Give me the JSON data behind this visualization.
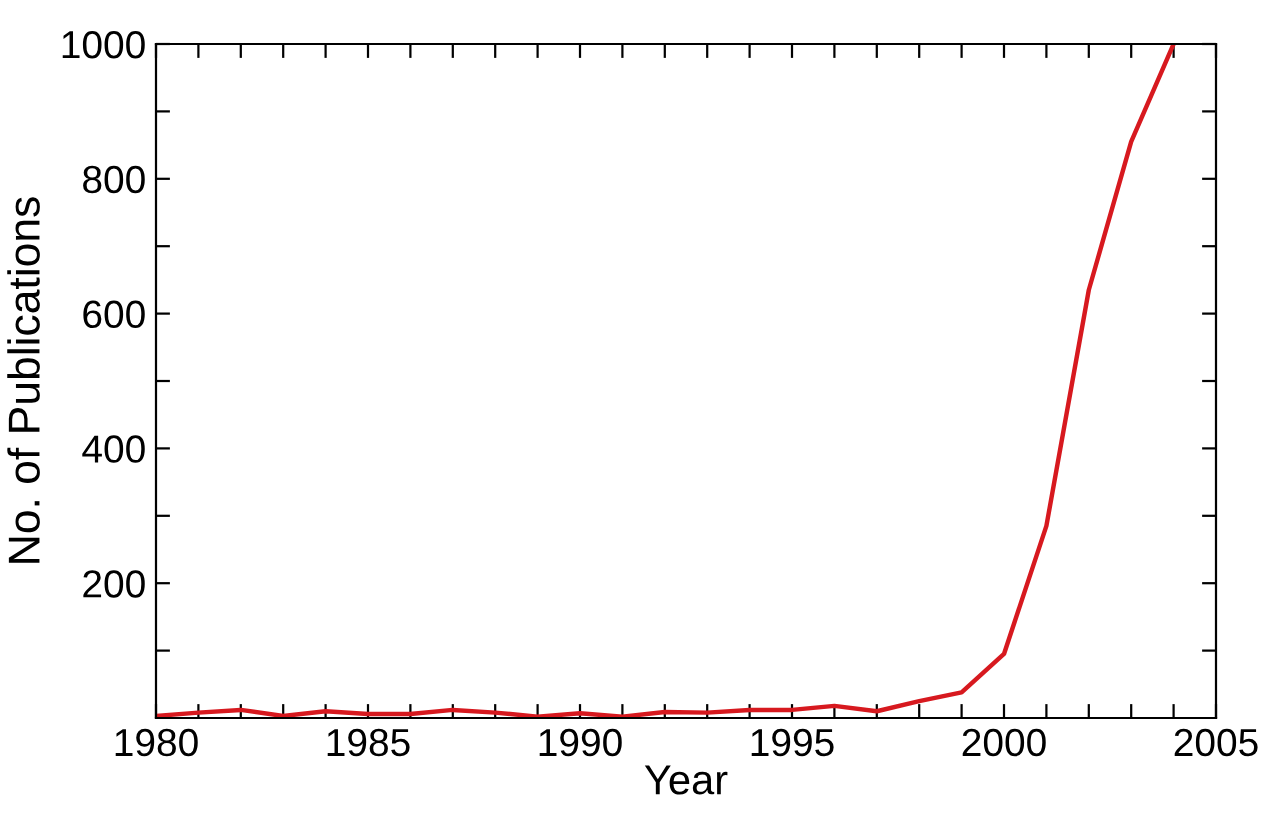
{
  "chart_data": {
    "type": "line",
    "xlabel": "Year",
    "ylabel": "No. of Publications",
    "x": [
      1980,
      1981,
      1982,
      1983,
      1984,
      1985,
      1986,
      1987,
      1988,
      1989,
      1990,
      1991,
      1992,
      1993,
      1994,
      1995,
      1996,
      1997,
      1998,
      1999,
      2000,
      2001,
      2002,
      2003,
      2004
    ],
    "series": [
      {
        "color": "#d7191f",
        "values": [
          3,
          8,
          12,
          3,
          10,
          6,
          6,
          12,
          8,
          2,
          7,
          2,
          9,
          8,
          12,
          12,
          18,
          10,
          25,
          38,
          95,
          285,
          635,
          855,
          1000
        ]
      }
    ],
    "xlim": [
      1980,
      2005
    ],
    "ylim": [
      0,
      1000
    ],
    "xticks": [
      1980,
      {
        "value": 1981,
        "label": null
      },
      {
        "value": 1982,
        "label": null
      },
      {
        "value": 1983,
        "label": null
      },
      {
        "value": 1984,
        "label": null
      },
      1985,
      {
        "value": 1986,
        "label": null
      },
      {
        "value": 1987,
        "label": null
      },
      {
        "value": 1988,
        "label": null
      },
      {
        "value": 1989,
        "label": null
      },
      1990,
      {
        "value": 1991,
        "label": null
      },
      {
        "value": 1992,
        "label": null
      },
      {
        "value": 1993,
        "label": null
      },
      {
        "value": 1994,
        "label": null
      },
      1995,
      {
        "value": 1996,
        "label": null
      },
      {
        "value": 1997,
        "label": null
      },
      {
        "value": 1998,
        "label": null
      },
      {
        "value": 1999,
        "label": null
      },
      2000,
      {
        "value": 2001,
        "label": null
      },
      {
        "value": 2002,
        "label": null
      },
      {
        "value": 2003,
        "label": null
      },
      {
        "value": 2004,
        "label": null
      },
      2005
    ],
    "yticks": [
      {
        "value": 100,
        "label": null
      },
      200,
      {
        "value": 300,
        "label": null
      },
      400,
      {
        "value": 500,
        "label": null
      },
      600,
      {
        "value": 700,
        "label": null
      },
      800,
      {
        "value": 900,
        "label": null
      },
      1000
    ],
    "grid": false,
    "legend": false,
    "marker": "none",
    "line_style": "solid"
  }
}
